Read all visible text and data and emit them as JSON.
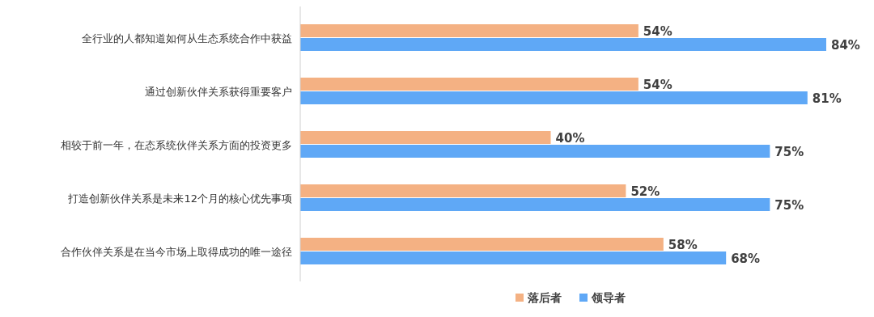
{
  "chart_data": {
    "type": "bar",
    "orientation": "horizontal",
    "legend": "bottom",
    "categories": [
      "全行业的人都知道如何从生态系统合作中获益",
      "通过创新伙伴关系获得重要客户",
      "相较于前一年，在态系统伙伴关系方面的投资更多",
      "打造创新伙伴关系是未来12个月的核心优先事项",
      "合作伙伴关系是在当今市场上取得成功的唯一途径"
    ],
    "series": [
      {
        "name": "落后者",
        "color": "#f4b183",
        "values": [
          54,
          54,
          40,
          52,
          58
        ],
        "value_labels": [
          "54%",
          "54%",
          "40%",
          "52%",
          "58%"
        ]
      },
      {
        "name": "领导者",
        "color": "#5fa8f6",
        "values": [
          84,
          81,
          75,
          75,
          68
        ],
        "value_labels": [
          "84%",
          "81%",
          "75%",
          "75%",
          "68%"
        ]
      }
    ]
  }
}
